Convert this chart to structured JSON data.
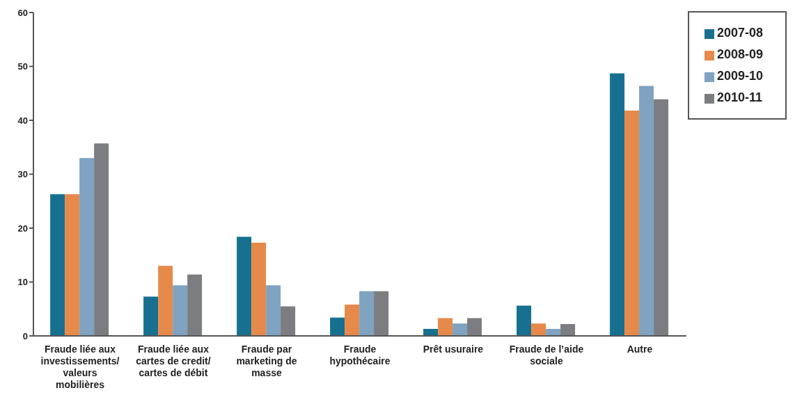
{
  "chart_data": {
    "type": "bar",
    "categories": [
      "Fraude liée aux investissements/ valeurs mobilières",
      "Fraude liée aux cartes de credit/ cartes de débit",
      "Fraude par marketing de masse",
      "Fraude hypothécaire",
      "Prêt usuraire",
      "Fraude de l’aide sociale",
      "Autre"
    ],
    "series": [
      {
        "name": "2007-08",
        "color": "#17708f",
        "values": [
          26.3,
          7.3,
          18.4,
          3.4,
          1.3,
          5.6,
          48.7
        ]
      },
      {
        "name": "2008-09",
        "color": "#e68a4b",
        "values": [
          26.3,
          13,
          17.3,
          5.8,
          3.3,
          2.3,
          41.8
        ]
      },
      {
        "name": "2009-10",
        "color": "#7fa3c0",
        "values": [
          33,
          9.4,
          9.4,
          8.3,
          2.3,
          1.3,
          46.4
        ]
      },
      {
        "name": "2010-11",
        "color": "#7b7d80",
        "values": [
          35.7,
          11.4,
          5.5,
          8.3,
          3.3,
          2.2,
          43.9
        ]
      }
    ],
    "ylim": [
      0,
      60
    ],
    "yticks": [
      0,
      10,
      20,
      30,
      40,
      50,
      60
    ],
    "legend": "top right"
  }
}
